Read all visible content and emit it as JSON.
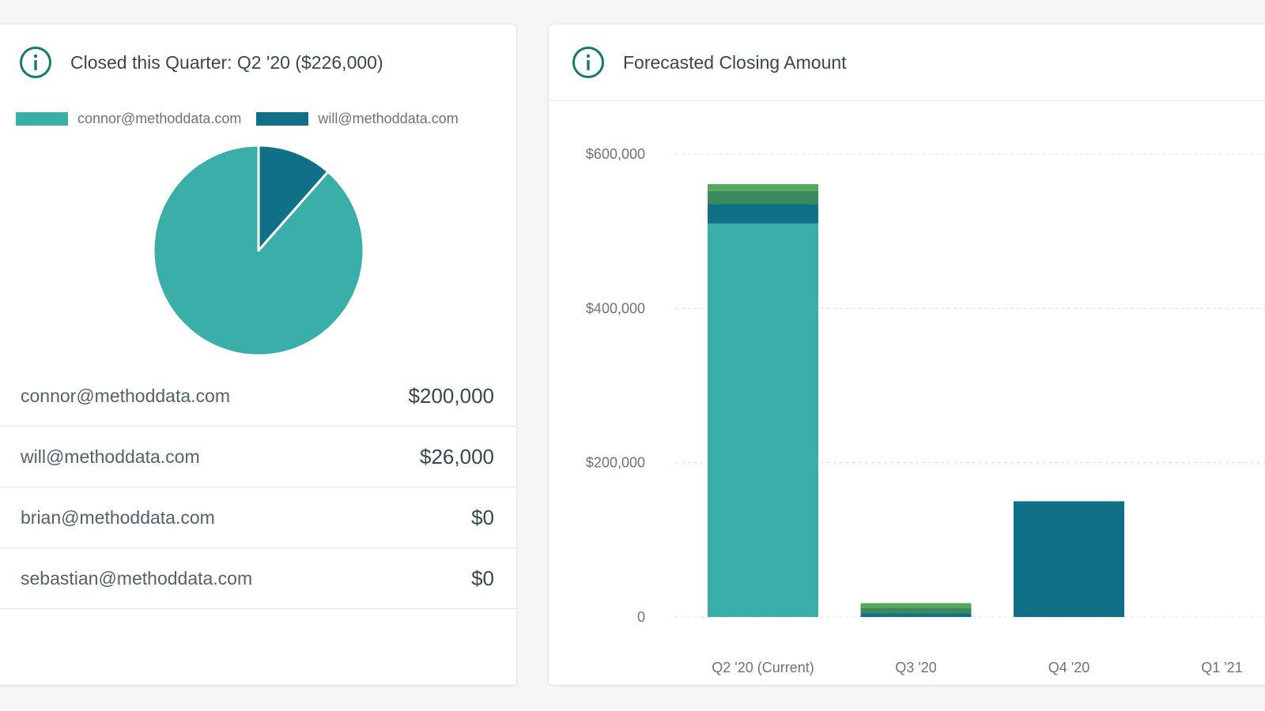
{
  "closed_card": {
    "title": "Closed this Quarter: Q2 '20 ($226,000)",
    "info_icon": "info-icon",
    "legend": [
      {
        "label": "connor@methoddata.com",
        "color": "#3aafa9"
      },
      {
        "label": "will@methoddata.com",
        "color": "#0f7088"
      }
    ],
    "pie": {
      "type": "pie",
      "slices": [
        {
          "label": "connor@methoddata.com",
          "value": 200000,
          "color": "#3aafa9"
        },
        {
          "label": "will@methoddata.com",
          "value": 26000,
          "color": "#0f7088"
        }
      ]
    },
    "rows": [
      {
        "email": "connor@methoddata.com",
        "amount": "$200,000"
      },
      {
        "email": "will@methoddata.com",
        "amount": "$26,000"
      },
      {
        "email": "brian@methoddata.com",
        "amount": "$0"
      },
      {
        "email": "sebastian@methoddata.com",
        "amount": "$0"
      }
    ]
  },
  "forecast_card": {
    "title": "Forecasted Closing Amount",
    "info_icon": "info-icon"
  },
  "chart_data": {
    "type": "bar",
    "stacked": true,
    "categories": [
      "Q2 '20 (Current)",
      "Q3 '20",
      "Q4 '20",
      "Q1 '21"
    ],
    "series": [
      {
        "values": [
          510000,
          0,
          0,
          0
        ],
        "color": "#3aafa9"
      },
      {
        "values": [
          25000,
          5000,
          150000,
          0
        ],
        "color": "#0f7088"
      },
      {
        "values": [
          17000,
          7000,
          0,
          0
        ],
        "color": "#3b8a5c"
      },
      {
        "values": [
          9000,
          6000,
          0,
          0
        ],
        "color": "#57a85f"
      }
    ],
    "yticks": [
      0,
      200000,
      400000,
      600000
    ],
    "ytick_labels": [
      "0",
      "$200,000",
      "$400,000",
      "$600,000"
    ],
    "ylim": [
      0,
      600000
    ],
    "grid": true
  }
}
